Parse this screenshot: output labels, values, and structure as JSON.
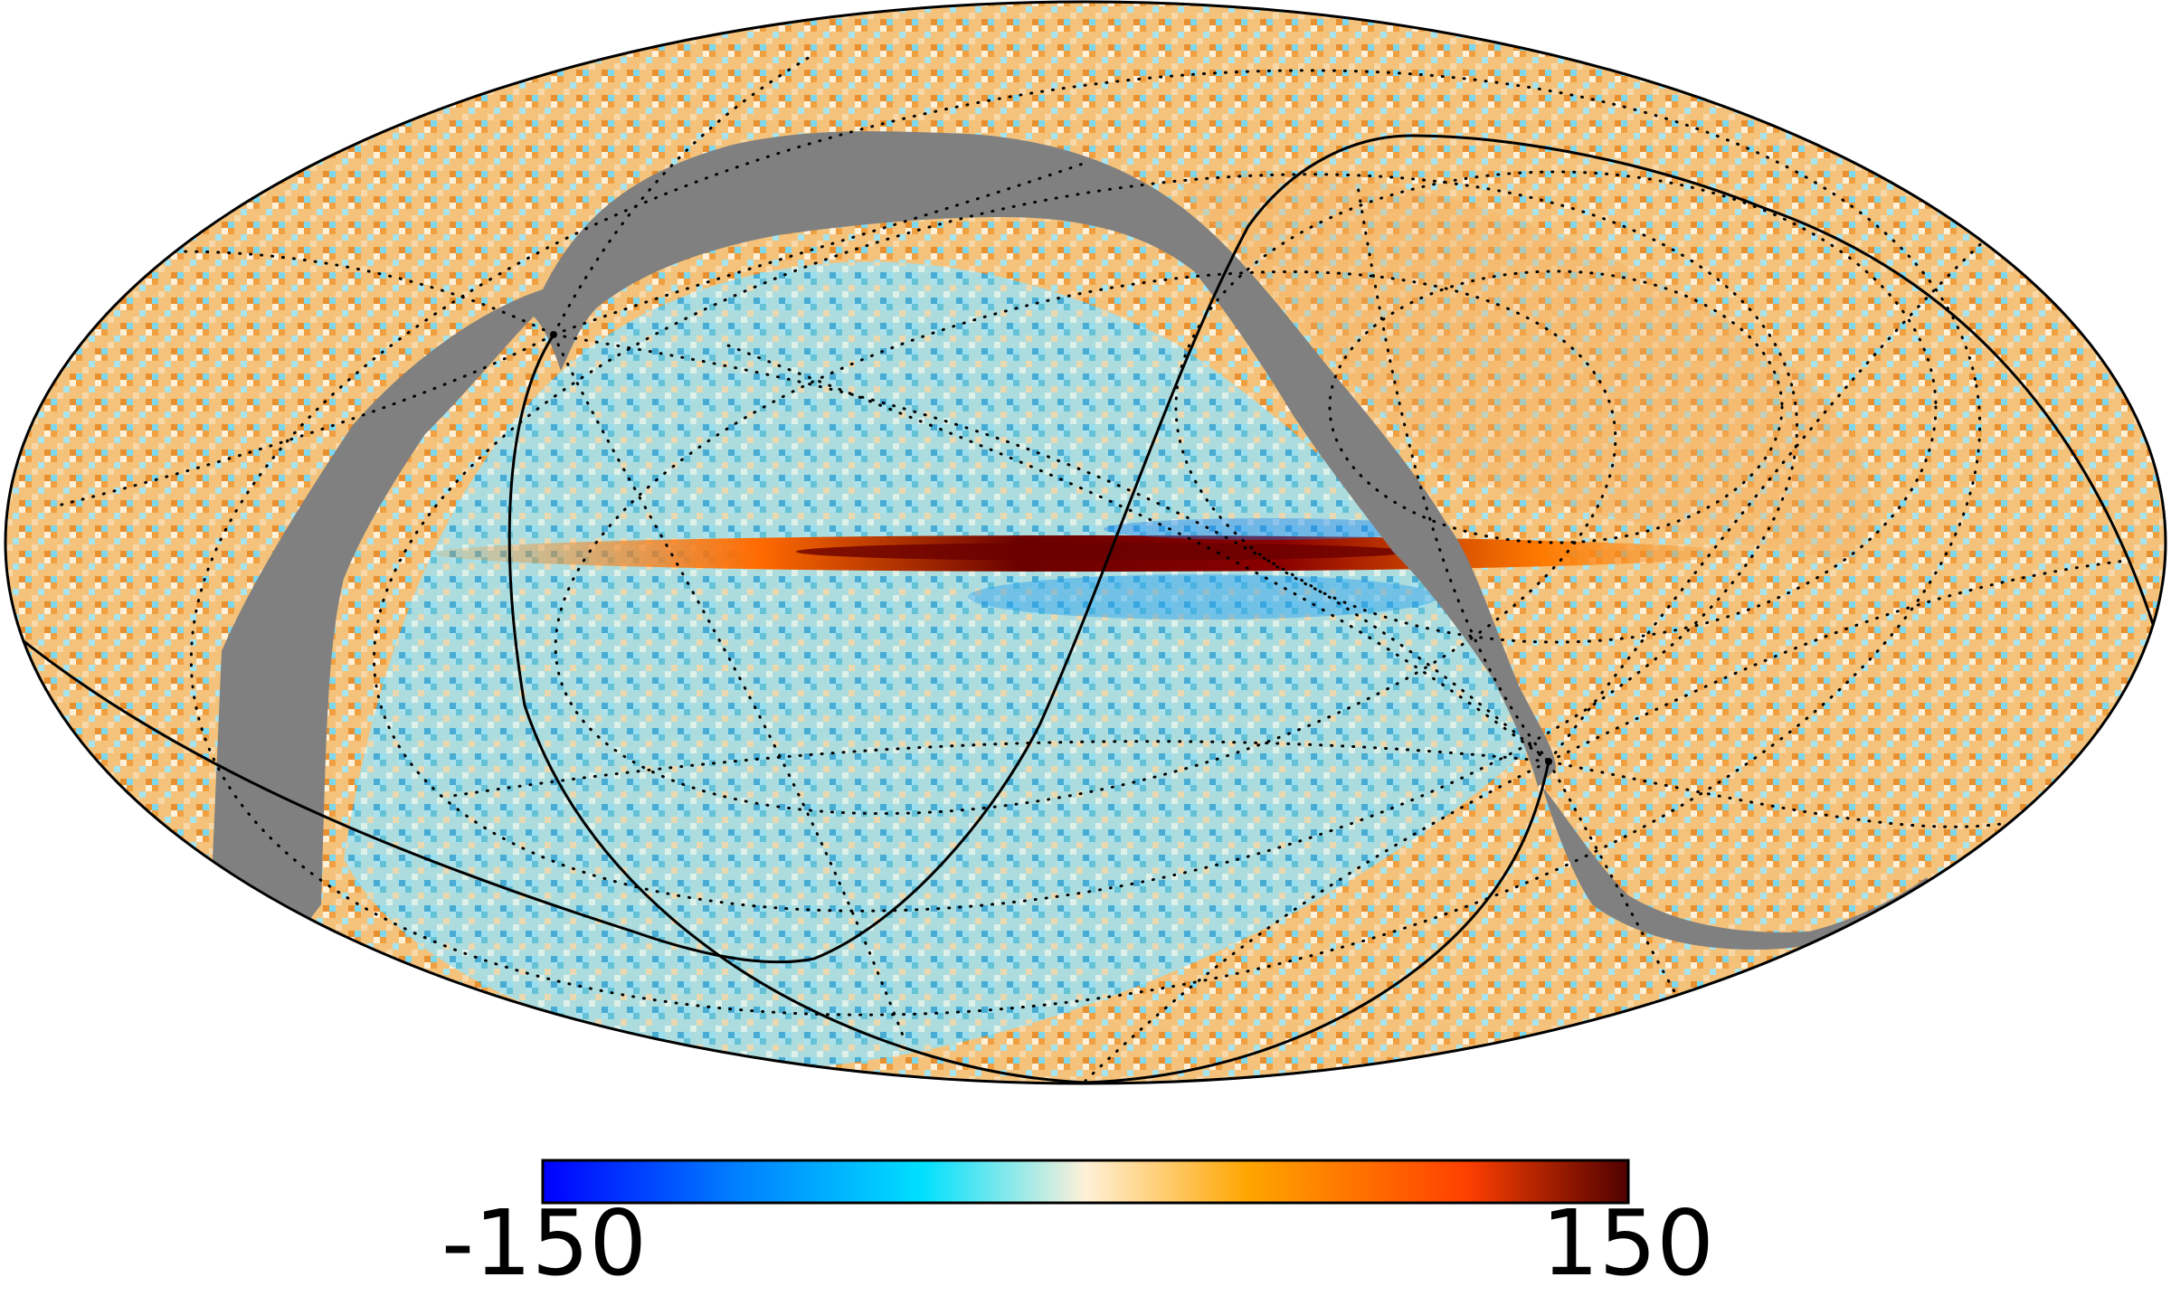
{
  "map": {
    "projection": "mollweide",
    "masked_color": "#808080"
  },
  "colorbar": {
    "min_label": "-150",
    "max_label": "150",
    "colors": [
      "#0000ff",
      "#0080ff",
      "#00e0ff",
      "#fff0d8",
      "#ffa500",
      "#ff4000",
      "#500000"
    ]
  }
}
